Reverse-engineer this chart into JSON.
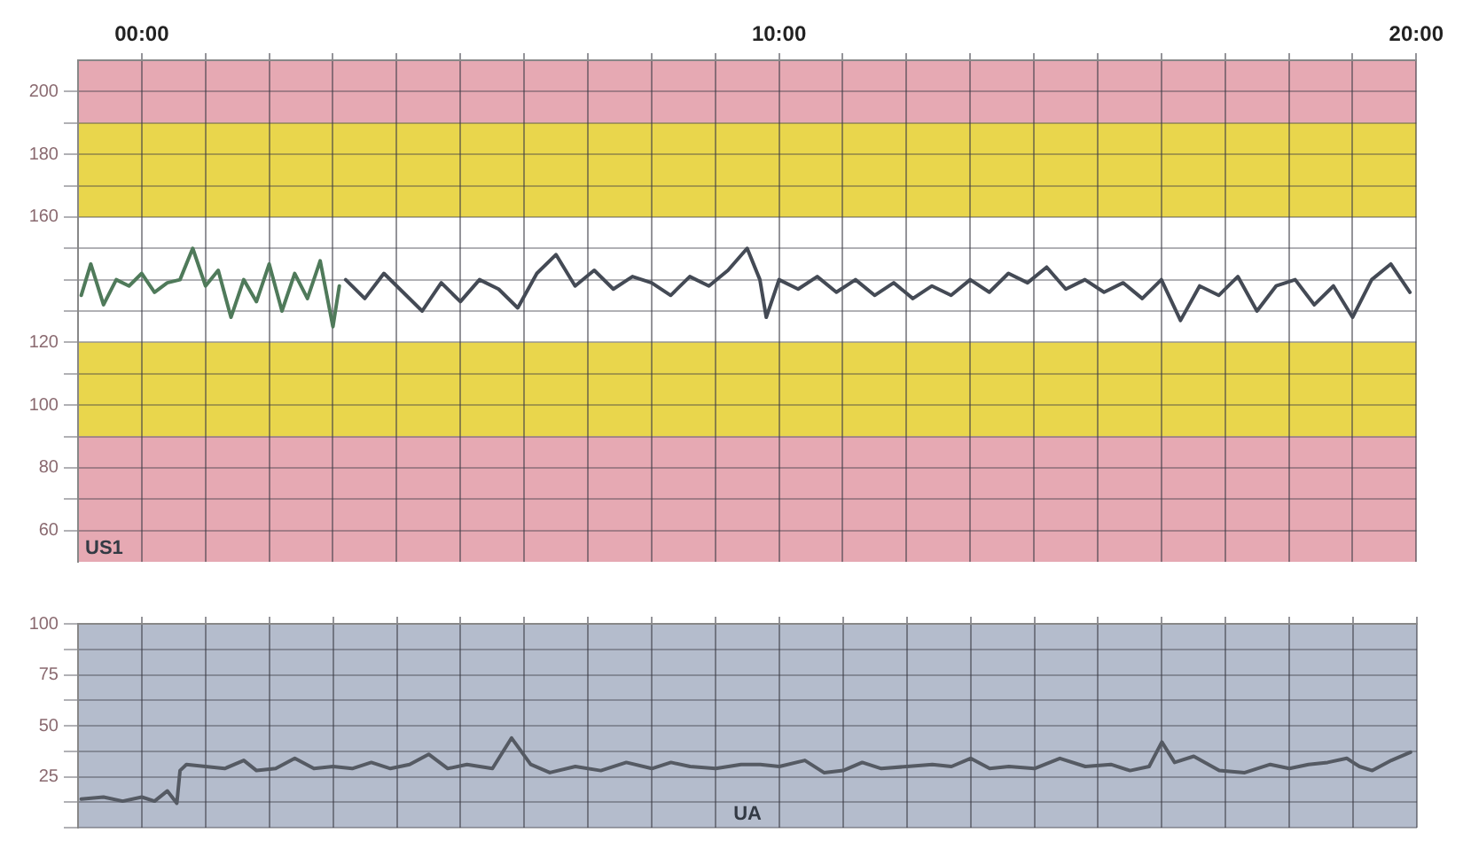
{
  "chart_data": [
    {
      "type": "line",
      "xlim": [
        -1,
        20
      ],
      "ylim": [
        50,
        210
      ],
      "xticks": [
        {
          "value": 0,
          "label": "00:00"
        },
        {
          "value": 1,
          "label": null
        },
        {
          "value": 2,
          "label": null
        },
        {
          "value": 3,
          "label": null
        },
        {
          "value": 4,
          "label": null
        },
        {
          "value": 5,
          "label": null
        },
        {
          "value": 6,
          "label": null
        },
        {
          "value": 7,
          "label": null
        },
        {
          "value": 8,
          "label": null
        },
        {
          "value": 9,
          "label": null
        },
        {
          "value": 10,
          "label": "10:00"
        },
        {
          "value": 11,
          "label": null
        },
        {
          "value": 12,
          "label": null
        },
        {
          "value": 13,
          "label": null
        },
        {
          "value": 14,
          "label": null
        },
        {
          "value": 15,
          "label": null
        },
        {
          "value": 16,
          "label": null
        },
        {
          "value": 17,
          "label": null
        },
        {
          "value": 18,
          "label": null
        },
        {
          "value": 19,
          "label": null
        },
        {
          "value": 20,
          "label": "20:00"
        }
      ],
      "yticks": [
        60,
        {
          "value": 70,
          "label": null
        },
        80,
        {
          "value": 90,
          "label": null
        },
        100,
        {
          "value": 110,
          "label": null
        },
        120,
        {
          "value": 130,
          "label": null
        },
        {
          "value": 140,
          "label": null
        },
        {
          "value": 150,
          "label": null
        },
        160,
        {
          "value": 170,
          "label": null
        },
        180,
        {
          "value": 190,
          "label": null
        },
        200
      ],
      "grid": true,
      "legend": false,
      "marker": "none",
      "line_style": "solid",
      "bands": [
        {
          "axis": "y",
          "from": 190,
          "to": 210,
          "color": "#e6a9b3"
        },
        {
          "axis": "y",
          "from": 160,
          "to": 190,
          "color": "#e9d64c"
        },
        {
          "axis": "y",
          "from": 90,
          "to": 120,
          "color": "#e9d64c"
        },
        {
          "axis": "y",
          "from": 50,
          "to": 90,
          "color": "#e6a9b3"
        }
      ],
      "annotations": [
        "US1"
      ],
      "series": [
        {
          "color": "#4f7a5a",
          "x": [
            -0.95,
            -0.8,
            -0.6,
            -0.4,
            -0.2,
            0,
            0.2,
            0.4,
            0.6,
            0.8,
            1.0,
            1.2,
            1.4,
            1.6,
            1.8,
            2.0,
            2.2,
            2.4,
            2.6,
            2.8,
            3.0,
            3.1
          ],
          "values": [
            135,
            145,
            132,
            140,
            138,
            142,
            136,
            139,
            140,
            150,
            138,
            143,
            128,
            140,
            133,
            145,
            130,
            142,
            134,
            146,
            125,
            138
          ]
        },
        {
          "color": "#444a55",
          "x": [
            3.2,
            3.5,
            3.8,
            4.1,
            4.4,
            4.7,
            5.0,
            5.3,
            5.6,
            5.9,
            6.2,
            6.5,
            6.8,
            7.1,
            7.4,
            7.7,
            8.0,
            8.3,
            8.6,
            8.9,
            9.2,
            9.5,
            9.7,
            9.8,
            10.0,
            10.3,
            10.6,
            10.9,
            11.2,
            11.5,
            11.8,
            12.1,
            12.4,
            12.7,
            13.0,
            13.3,
            13.6,
            13.9,
            14.2,
            14.5,
            14.8,
            15.1,
            15.4,
            15.7,
            16.0,
            16.3,
            16.6,
            16.9,
            17.2,
            17.5,
            17.8,
            18.1,
            18.4,
            18.7,
            19.0,
            19.3,
            19.6,
            19.9
          ],
          "values": [
            140,
            134,
            142,
            136,
            130,
            139,
            133,
            140,
            137,
            131,
            142,
            148,
            138,
            143,
            137,
            141,
            139,
            135,
            141,
            138,
            143,
            150,
            140,
            128,
            140,
            137,
            141,
            136,
            140,
            135,
            139,
            134,
            138,
            135,
            140,
            136,
            142,
            139,
            144,
            137,
            140,
            136,
            139,
            134,
            140,
            127,
            138,
            135,
            141,
            130,
            138,
            140,
            132,
            138,
            128,
            140,
            145,
            136
          ]
        }
      ]
    },
    {
      "type": "line",
      "xlim": [
        -1,
        20
      ],
      "ylim": [
        0,
        100
      ],
      "xticks": [
        {
          "value": 0,
          "label": null
        },
        {
          "value": 1,
          "label": null
        },
        {
          "value": 2,
          "label": null
        },
        {
          "value": 3,
          "label": null
        },
        {
          "value": 4,
          "label": null
        },
        {
          "value": 5,
          "label": null
        },
        {
          "value": 6,
          "label": null
        },
        {
          "value": 7,
          "label": null
        },
        {
          "value": 8,
          "label": null
        },
        {
          "value": 9,
          "label": null
        },
        {
          "value": 10,
          "label": null
        },
        {
          "value": 11,
          "label": null
        },
        {
          "value": 12,
          "label": null
        },
        {
          "value": 13,
          "label": null
        },
        {
          "value": 14,
          "label": null
        },
        {
          "value": 15,
          "label": null
        },
        {
          "value": 16,
          "label": null
        },
        {
          "value": 17,
          "label": null
        },
        {
          "value": 18,
          "label": null
        },
        {
          "value": 19,
          "label": null
        },
        {
          "value": 20,
          "label": null
        }
      ],
      "yticks": [
        {
          "value": 0,
          "label": null
        },
        {
          "value": 12.5,
          "label": null
        },
        25,
        {
          "value": 37.5,
          "label": null
        },
        50,
        {
          "value": 62.5,
          "label": null
        },
        75,
        {
          "value": 87.5,
          "label": null
        },
        100
      ],
      "tick_labels": "y",
      "grid": true,
      "legend": false,
      "marker": "none",
      "line_style": "solid",
      "bands": [
        {
          "axis": "y",
          "from": 0,
          "to": 100,
          "color": "#b4bccc"
        }
      ],
      "annotations": [
        "UA"
      ],
      "series": [
        {
          "color": "#555a63",
          "x": [
            -0.95,
            -0.6,
            -0.3,
            0,
            0.2,
            0.4,
            0.55,
            0.6,
            0.7,
            1.0,
            1.3,
            1.6,
            1.8,
            2.1,
            2.4,
            2.7,
            3.0,
            3.3,
            3.6,
            3.9,
            4.2,
            4.5,
            4.8,
            5.1,
            5.5,
            5.8,
            6.1,
            6.4,
            6.8,
            7.2,
            7.6,
            8.0,
            8.3,
            8.6,
            9.0,
            9.4,
            9.7,
            10.0,
            10.4,
            10.7,
            11.0,
            11.3,
            11.6,
            12.0,
            12.4,
            12.7,
            13.0,
            13.3,
            13.6,
            14.0,
            14.4,
            14.8,
            15.2,
            15.5,
            15.8,
            16.0,
            16.2,
            16.5,
            16.9,
            17.3,
            17.7,
            18.0,
            18.3,
            18.6,
            18.9,
            19.1,
            19.3,
            19.6,
            19.9
          ],
          "values": [
            14,
            15,
            13,
            15,
            13,
            18,
            12,
            28,
            31,
            30,
            29,
            33,
            28,
            29,
            34,
            29,
            30,
            29,
            32,
            29,
            31,
            36,
            29,
            31,
            29,
            44,
            31,
            27,
            30,
            28,
            32,
            29,
            32,
            30,
            29,
            31,
            31,
            30,
            33,
            27,
            28,
            32,
            29,
            30,
            31,
            30,
            34,
            29,
            30,
            29,
            34,
            30,
            31,
            28,
            30,
            42,
            32,
            35,
            28,
            27,
            31,
            29,
            31,
            32,
            34,
            30,
            28,
            33,
            37
          ]
        }
      ]
    }
  ]
}
